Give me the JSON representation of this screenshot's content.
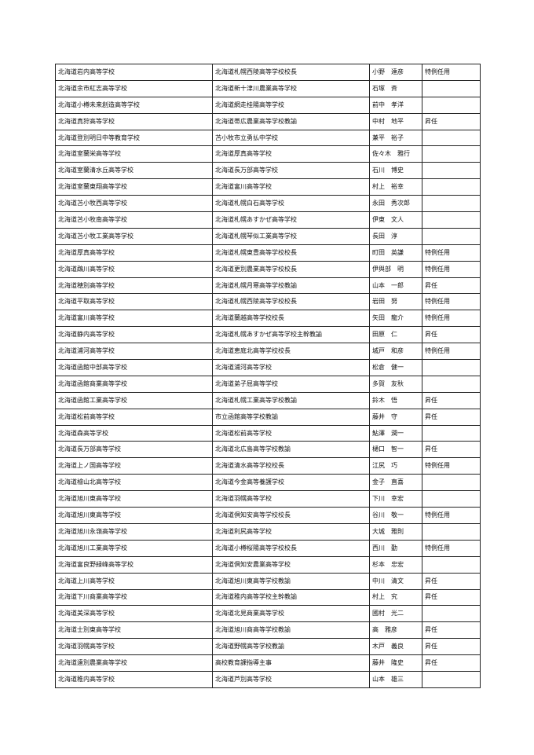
{
  "rows": [
    {
      "new_school": "北海道岩内高等学校",
      "previous": "北海道札幌西陵高等学校校長",
      "surname": "小野",
      "given": "達彦",
      "note": "特例任用"
    },
    {
      "new_school": "北海道余市紅志高等学校",
      "previous": "北海道新十津川農業高等学校",
      "surname": "石塚",
      "given": "斉",
      "note": ""
    },
    {
      "new_school": "北海道小樽未来創造高等学校",
      "previous": "北海道網走桂陽高等学校",
      "surname": "前中",
      "given": "孝洋",
      "note": ""
    },
    {
      "new_school": "北海道真狩高等学校",
      "previous": "北海道帯広農業高等学校教諭",
      "surname": "中村",
      "given": "地平",
      "note": "昇任"
    },
    {
      "new_school": "北海道登別明日中等教育学校",
      "previous": "苫小牧市立勇払中学校",
      "surname": "兼平",
      "given": "裕子",
      "note": ""
    },
    {
      "new_school": "北海道室蘭栄高等学校",
      "previous": "北海道厚真高等学校",
      "surname": "佐々木",
      "given": "雅行",
      "note": ""
    },
    {
      "new_school": "北海道室蘭清水丘高等学校",
      "previous": "北海道長万部高等学校",
      "surname": "石川",
      "given": "博史",
      "note": ""
    },
    {
      "new_school": "北海道室蘭東翔高等学校",
      "previous": "北海道富川高等学校",
      "surname": "村上",
      "given": "裕幸",
      "note": ""
    },
    {
      "new_school": "北海道苫小牧西高等学校",
      "previous": "北海道札幌白石高等学校",
      "surname": "永田",
      "given": "秀次郎",
      "note": ""
    },
    {
      "new_school": "北海道苫小牧南高等学校",
      "previous": "北海道札幌あすかぜ高等学校",
      "surname": "伊東",
      "given": "文人",
      "note": ""
    },
    {
      "new_school": "北海道苫小牧工業高等学校",
      "previous": "北海道札幌琴似工業高等学校",
      "surname": "長田",
      "given": "淳",
      "note": ""
    },
    {
      "new_school": "北海道厚真高等学校",
      "previous": "北海道札幌東豊高等学校校長",
      "surname": "町田",
      "given": "英謙",
      "note": "特例任用"
    },
    {
      "new_school": "北海道鵡川高等学校",
      "previous": "北海道更別農業高等学校校長",
      "surname": "伊與部",
      "given": "明",
      "note": "特例任用"
    },
    {
      "new_school": "北海道穂別高等学校",
      "previous": "北海道札幌月寒高等学校教諭",
      "surname": "山本",
      "given": "一郎",
      "note": "昇任"
    },
    {
      "new_school": "北海道平取高等学校",
      "previous": "北海道札幌西陵高等学校校長",
      "surname": "岩田",
      "given": "努",
      "note": "特例任用"
    },
    {
      "new_school": "北海道富川高等学校",
      "previous": "北海道蘭越高等学校校長",
      "surname": "矢田",
      "given": "龍介",
      "note": "特例任用"
    },
    {
      "new_school": "北海道静内高等学校",
      "previous": "北海道札幌あすかぜ高等学校主幹教諭",
      "surname": "田原",
      "given": "仁",
      "note": "昇任"
    },
    {
      "new_school": "北海道浦河高等学校",
      "previous": "北海道恵庭北高等学校校長",
      "surname": "城戸",
      "given": "和彦",
      "note": "特例任用"
    },
    {
      "new_school": "北海道函館中部高等学校",
      "previous": "北海道浦河高等学校",
      "surname": "松倉",
      "given": "健一",
      "note": ""
    },
    {
      "new_school": "北海道函館商業高等学校",
      "previous": "北海道弟子屈高等学校",
      "surname": "多賀",
      "given": "友秋",
      "note": ""
    },
    {
      "new_school": "北海道函館工業高等学校",
      "previous": "北海道札幌工業高等学校教諭",
      "surname": "鈴木",
      "given": "悟",
      "note": "昇任"
    },
    {
      "new_school": "北海道松前高等学校",
      "previous": "市立函館高等学校教諭",
      "surname": "藤井",
      "given": "守",
      "note": "昇任"
    },
    {
      "new_school": "北海道森高等学校",
      "previous": "北海道松前高等学校",
      "surname": "鮎澤",
      "given": "潤一",
      "note": ""
    },
    {
      "new_school": "北海道長万部高等学校",
      "previous": "北海道北広島高等学校教諭",
      "surname": "樋口",
      "given": "智一",
      "note": "昇任"
    },
    {
      "new_school": "北海道上ノ国高等学校",
      "previous": "北海道清水高等学校校長",
      "surname": "江尻",
      "given": "巧",
      "note": "特例任用"
    },
    {
      "new_school": "北海道檜山北高等学校",
      "previous": "北海道今金高等養護学校",
      "surname": "金子",
      "given": "直喜",
      "note": ""
    },
    {
      "new_school": "北海道旭川東高等学校",
      "previous": "北海道羽幌高等学校",
      "surname": "下川",
      "given": "幸宏",
      "note": ""
    },
    {
      "new_school": "北海道旭川東高等学校",
      "previous": "北海道倶知安高等学校校長",
      "surname": "谷川",
      "given": "敬一",
      "note": "特例任用"
    },
    {
      "new_school": "北海道旭川永嶺高等学校",
      "previous": "北海道利尻高等学校",
      "surname": "大城",
      "given": "雅則",
      "note": ""
    },
    {
      "new_school": "北海道旭川工業高等学校",
      "previous": "北海道小樽桜陽高等学校校長",
      "surname": "西川",
      "given": "勤",
      "note": "特例任用"
    },
    {
      "new_school": "北海道富良野緑峰高等学校",
      "previous": "北海道倶知安農業高等学校",
      "surname": "杉本",
      "given": "忠宏",
      "note": ""
    },
    {
      "new_school": "北海道上川高等学校",
      "previous": "北海道旭川東高等学校教諭",
      "surname": "中川",
      "given": "清文",
      "note": "昇任"
    },
    {
      "new_school": "北海道下川商業高等学校",
      "previous": "北海道稚内高等学校主幹教諭",
      "surname": "村上",
      "given": "究",
      "note": "昇任"
    },
    {
      "new_school": "北海道美深高等学校",
      "previous": "北海道北見商業高等学校",
      "surname": "國村",
      "given": "光二",
      "note": ""
    },
    {
      "new_school": "北海道士別東高等学校",
      "previous": "北海道旭川商高等学校教諭",
      "surname": "高",
      "given": "雅彦",
      "note": "昇任"
    },
    {
      "new_school": "北海道羽幌高等学校",
      "previous": "北海道野幌高等学校教諭",
      "surname": "木戸",
      "given": "義良",
      "note": "昇任"
    },
    {
      "new_school": "北海道遠別農業高等学校",
      "previous": "高校教育課指導主事",
      "surname": "藤井",
      "given": "隆史",
      "note": "昇任"
    },
    {
      "new_school": "北海道稚内高等学校",
      "previous": "北海道芦別高等学校",
      "surname": "山本",
      "given": "雄三",
      "note": ""
    }
  ]
}
